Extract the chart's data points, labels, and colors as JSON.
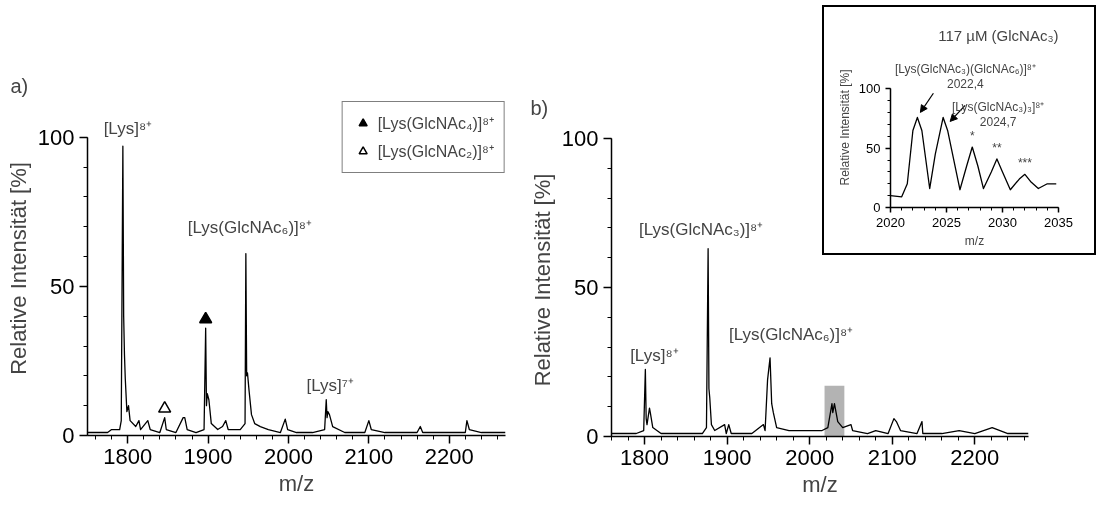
{
  "chart_data": [
    {
      "type": "line",
      "title": "a)",
      "xlabel": "m/z",
      "ylabel": "Relative Intensität [%]",
      "xlim": [
        1750,
        2270
      ],
      "xticks": [
        1800,
        1900,
        2000,
        2100,
        2200
      ],
      "ylim": [
        0,
        100
      ],
      "yticks": [
        0,
        50,
        100
      ],
      "legend": "top right",
      "series": [
        {
          "color": "#000000",
          "x": [
            1750,
            1775,
            1780,
            1790,
            1792,
            1794,
            1795,
            1796,
            1797,
            1799,
            1801,
            1803,
            1810,
            1814,
            1816,
            1825,
            1828,
            1840,
            1846,
            1848,
            1860,
            1869,
            1871,
            1874,
            1885,
            1895,
            1897,
            1898,
            1899,
            1901,
            1904,
            1912,
            1918,
            1922,
            1925,
            1940,
            1946,
            1947,
            1948,
            1949,
            1951,
            1954,
            1958,
            1965,
            1975,
            1990,
            1996,
            1999,
            2010,
            2030,
            2045,
            2047,
            2048,
            2049,
            2051,
            2055,
            2070,
            2095,
            2100,
            2103,
            2120,
            2160,
            2164,
            2167,
            2200,
            2220,
            2222,
            2225,
            2240,
            2270
          ],
          "values": [
            1,
            1,
            2,
            2,
            5,
            97,
            40,
            27,
            19,
            8,
            10,
            5,
            3,
            5,
            2,
            5,
            2,
            1,
            6,
            2,
            1,
            6,
            6,
            2,
            1,
            2,
            36,
            10,
            14,
            12,
            4,
            2,
            3,
            5,
            2,
            2,
            4,
            61,
            20,
            21,
            15,
            7,
            4,
            3,
            2,
            1,
            5.5,
            2,
            1,
            1,
            2,
            12,
            6,
            8,
            7,
            3,
            1,
            1,
            5,
            2,
            1,
            1,
            3,
            1,
            1,
            1,
            5,
            2,
            1,
            1
          ]
        },
        {
          "type": "scatter",
          "name": "[Lys(GlcNAc₄)]⁸⁺",
          "marker": "triangle",
          "color": "#000000",
          "x": [
            1897
          ],
          "values": [
            39
          ]
        },
        {
          "type": "scatter",
          "name": "[Lys(GlcNAc₂)]⁸⁺",
          "marker": "triangle",
          "color": "#ffffff",
          "x": [
            1846
          ],
          "values": [
            9
          ]
        }
      ],
      "annotations": [
        {
          "text": "[Lys]⁸⁺",
          "x": 1794,
          "y": 97
        },
        {
          "text": "[Lys(GlcNAc₆)]⁸⁺",
          "x": 1947,
          "y": 61
        },
        {
          "text": "[Lys]⁷⁺",
          "x": 2047,
          "y": 12
        }
      ]
    },
    {
      "type": "line",
      "title": "b)",
      "xlabel": "m/z",
      "ylabel": "Relative Intensität [%]",
      "xlim": [
        1760,
        2265
      ],
      "xticks": [
        1800,
        1900,
        2000,
        2100,
        2200
      ],
      "ylim": [
        0,
        100
      ],
      "yticks": [
        0,
        50,
        100
      ],
      "series": [
        {
          "color": "#000000",
          "x": [
            1760,
            1790,
            1799,
            1801,
            1802,
            1803,
            1806,
            1807,
            1810,
            1820,
            1870,
            1875,
            1877,
            1878,
            1879,
            1881,
            1885,
            1897,
            1899,
            1902,
            1905,
            1930,
            1944,
            1946,
            1949,
            1952,
            1954,
            1956,
            1960,
            1975,
            2000,
            2015,
            2022,
            2027,
            2028,
            2030,
            2034,
            2040,
            2050,
            2052,
            2070,
            2080,
            2095,
            2102,
            2105,
            2110,
            2130,
            2136,
            2137,
            2160,
            2181,
            2200,
            2221,
            2240,
            2265
          ],
          "values": [
            1,
            1,
            2,
            22.5,
            6,
            4,
            9.5,
            8,
            3,
            1,
            1,
            3,
            63,
            16,
            13,
            4,
            2,
            4,
            1,
            4,
            1,
            1,
            4,
            2,
            19,
            26.4,
            11,
            8,
            3,
            2,
            2,
            2,
            3,
            11,
            8,
            11,
            5,
            3,
            4,
            2,
            1,
            2,
            1,
            6,
            5,
            2,
            1,
            5,
            1,
            1,
            2,
            1,
            3,
            1,
            1
          ]
        }
      ],
      "bands": [
        {
          "axis": "x",
          "from": 2018,
          "to": 2042,
          "color": "#b3b3b3"
        }
      ],
      "annotations": [
        {
          "text": "[Lys]⁸⁺",
          "x": 1801,
          "y": 22.5
        },
        {
          "text": "[Lys(GlcNAc₃)]⁸⁺",
          "x": 1877,
          "y": 63
        },
        {
          "text": "[Lys(GlcNAc₆)]⁸⁺",
          "x": 1952,
          "y": 26.4
        }
      ]
    },
    {
      "type": "line",
      "title": "117 µM (GlcNAc₃)",
      "xlabel": "m/z",
      "ylabel": "Relative Intensität [%]",
      "xlim": [
        2020,
        2035
      ],
      "xticks": [
        2020,
        2025,
        2030,
        2035
      ],
      "ylim": [
        0,
        100
      ],
      "yticks": [
        0,
        50,
        100
      ],
      "series": [
        {
          "color": "#000000",
          "x": [
            2020,
            2021,
            2021.5,
            2022,
            2022.4,
            2022.8,
            2023.5,
            2024,
            2024.7,
            2025.1,
            2026.2,
            2026.8,
            2027.3,
            2027.8,
            2028.3,
            2029,
            2029.5,
            2030,
            2030.7,
            2031.5,
            2032,
            2032.5,
            2033.2,
            2034,
            2034.8
          ],
          "values": [
            10,
            9,
            20,
            65,
            76,
            65,
            16,
            45,
            76,
            65,
            15,
            35,
            51,
            35,
            16,
            30,
            41,
            30,
            15,
            24,
            28,
            22,
            16,
            20,
            20
          ]
        }
      ],
      "annotations": [
        {
          "text": "[Lys(GlcNAc₃)(GlcNAc₆)]⁸⁺\n2022,4",
          "x": 2022.4,
          "y": 76
        },
        {
          "text": "[Lys(GlcNAc₃)₃]⁸⁺\n2024,7",
          "x": 2024.7,
          "y": 76
        },
        {
          "text": "*",
          "x": 2027.3,
          "y": 51
        },
        {
          "text": "**",
          "x": 2029.5,
          "y": 41
        },
        {
          "text": "***",
          "x": 2032,
          "y": 28
        }
      ]
    }
  ]
}
